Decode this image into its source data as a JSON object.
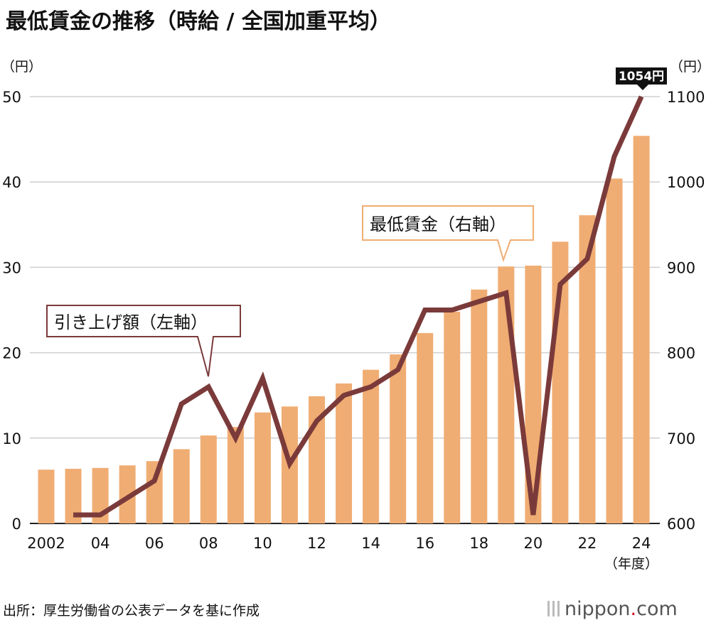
{
  "chart_data": {
    "type": "bar+line",
    "title": "最低賃金の推移（時給 / 全国加重平均）",
    "x_labels": [
      "2002",
      "",
      "04",
      "",
      "06",
      "",
      "08",
      "",
      "10",
      "",
      "12",
      "",
      "14",
      "",
      "16",
      "",
      "18",
      "",
      "20",
      "",
      "22",
      "",
      "24"
    ],
    "x_unit": "（年度）",
    "left_axis": {
      "unit": "（円）",
      "ylim": [
        0,
        50
      ],
      "ticks": [
        "0",
        "10",
        "20",
        "30",
        "40",
        "50"
      ]
    },
    "right_axis": {
      "unit": "（円）",
      "ylim": [
        600,
        1100
      ],
      "ticks": [
        "600",
        "700",
        "800",
        "900",
        "1000",
        "1100"
      ]
    },
    "bar_series": {
      "name": "最低賃金（右軸）",
      "color": "#f0ad73",
      "values": [
        663,
        664,
        665,
        668,
        673,
        687,
        703,
        713,
        730,
        737,
        749,
        764,
        780,
        798,
        823,
        848,
        874,
        901,
        902,
        930,
        961,
        1004,
        1054
      ]
    },
    "line_series": {
      "name": "引き上げ額（左軸）",
      "color": "#7b3a3a",
      "values": [
        null,
        1,
        1,
        3,
        5,
        14,
        16,
        10,
        17,
        7,
        12,
        15,
        16,
        18,
        25,
        25,
        26,
        27,
        1,
        28,
        31,
        43,
        50
      ]
    },
    "annotation_last": "1054円",
    "grid": "horizontal"
  },
  "source": "出所：厚生労働省の公表データを基に作成",
  "brand": {
    "name": "nippon",
    "dot": ".",
    "suffix": "com",
    "dot_color": "#d6001c"
  }
}
